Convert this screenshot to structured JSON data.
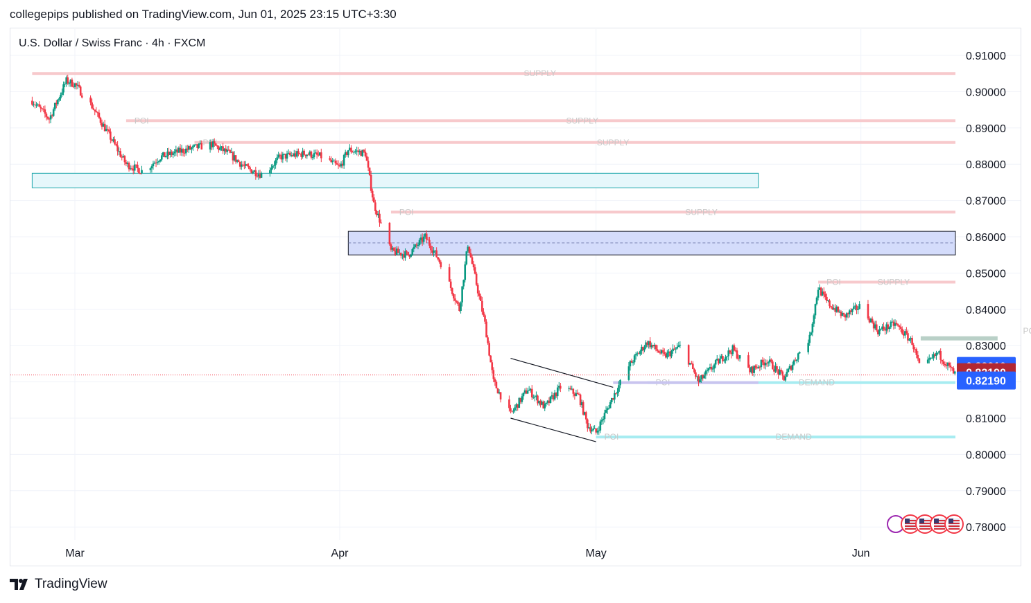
{
  "header": {
    "published": "collegepips published on TradingView.com, Jun 01, 2025 23:15 UTC+3:30",
    "symbol": "U.S. Dollar / Swiss Franc · 4h · FXCM"
  },
  "brand": {
    "name": "TradingView",
    "icon": "tradingview-logo-icon"
  },
  "chart_data": {
    "type": "candlestick",
    "y_axis": {
      "range": [
        0.775,
        0.915
      ],
      "ticks": [
        "0.91000",
        "0.90000",
        "0.89000",
        "0.88000",
        "0.87000",
        "0.86000",
        "0.85000",
        "0.84000",
        "0.83000",
        "0.82000",
        "0.81000",
        "0.80000",
        "0.79000",
        "0.78000"
      ]
    },
    "x_axis": {
      "ticks": [
        {
          "label": "Mar",
          "date": "2025-03-01"
        },
        {
          "label": "Apr",
          "date": "2025-04-01"
        },
        {
          "label": "May",
          "date": "2025-05-01"
        },
        {
          "label": "Jun",
          "date": "2025-06-01"
        }
      ]
    },
    "grid": true,
    "price_labels": [
      {
        "value": "0.82210",
        "color": "#2962ff"
      },
      {
        "value": "0.82190",
        "color": "#b22833"
      },
      {
        "value": "0.82190",
        "color": "#2962ff"
      }
    ],
    "last_price": 0.8219,
    "colors": {
      "up": "#089981",
      "down": "#f23645",
      "supply": "#f7c9cc",
      "demand": "#a7ecf1",
      "current_line": "#f23645"
    },
    "price_path": [
      [
        "2025-02-24",
        0.8975
      ],
      [
        "2025-02-26",
        0.8925
      ],
      [
        "2025-02-28",
        0.903
      ],
      [
        "2025-03-01",
        0.902
      ],
      [
        "2025-03-03",
        0.896
      ],
      [
        "2025-03-05",
        0.888
      ],
      [
        "2025-03-07",
        0.88
      ],
      [
        "2025-03-09",
        0.878
      ],
      [
        "2025-03-11",
        0.882
      ],
      [
        "2025-03-14",
        0.884
      ],
      [
        "2025-03-17",
        0.8855
      ],
      [
        "2025-03-19",
        0.883
      ],
      [
        "2025-03-21",
        0.879
      ],
      [
        "2025-03-23",
        0.877
      ],
      [
        "2025-03-25",
        0.882
      ],
      [
        "2025-03-28",
        0.883
      ],
      [
        "2025-03-30",
        0.882
      ],
      [
        "2025-04-01",
        0.879
      ],
      [
        "2025-04-02",
        0.884
      ],
      [
        "2025-04-04",
        0.883
      ],
      [
        "2025-04-05",
        0.869
      ],
      [
        "2025-04-07",
        0.856
      ],
      [
        "2025-04-09",
        0.855
      ],
      [
        "2025-04-11",
        0.86
      ],
      [
        "2025-04-13",
        0.852
      ],
      [
        "2025-04-15",
        0.84
      ],
      [
        "2025-04-16",
        0.858
      ],
      [
        "2025-04-18",
        0.836
      ],
      [
        "2025-04-19",
        0.82
      ],
      [
        "2025-04-21",
        0.811
      ],
      [
        "2025-04-23",
        0.818
      ],
      [
        "2025-04-25",
        0.813
      ],
      [
        "2025-04-27",
        0.819
      ],
      [
        "2025-04-29",
        0.816
      ],
      [
        "2025-04-30",
        0.808
      ],
      [
        "2025-05-01",
        0.806
      ],
      [
        "2025-05-03",
        0.816
      ],
      [
        "2025-05-05",
        0.825
      ],
      [
        "2025-05-07",
        0.831
      ],
      [
        "2025-05-09",
        0.827
      ],
      [
        "2025-05-11",
        0.83
      ],
      [
        "2025-05-13",
        0.82
      ],
      [
        "2025-05-15",
        0.825
      ],
      [
        "2025-05-17",
        0.829
      ],
      [
        "2025-05-19",
        0.823
      ],
      [
        "2025-05-21",
        0.826
      ],
      [
        "2025-05-23",
        0.821
      ],
      [
        "2025-05-25",
        0.829
      ],
      [
        "2025-05-26",
        0.832
      ],
      [
        "2025-05-27",
        0.846
      ],
      [
        "2025-05-28",
        0.842
      ],
      [
        "2025-05-30",
        0.838
      ],
      [
        "2025-06-01",
        0.841
      ],
      [
        "2025-06-03",
        0.834
      ],
      [
        "2025-06-05",
        0.836
      ],
      [
        "2025-06-07",
        0.831
      ],
      [
        "2025-06-08",
        0.823
      ],
      [
        "2025-06-10",
        0.828
      ],
      [
        "2025-06-12",
        0.822
      ],
      [
        "2025-06-14",
        0.82
      ],
      [
        "2025-06-16",
        0.826
      ],
      [
        "2025-06-18",
        0.825
      ],
      [
        "2025-06-19",
        0.834
      ],
      [
        "2025-06-20",
        0.824
      ],
      [
        "2025-06-22",
        0.822
      ],
      [
        "2025-06-23",
        0.8219
      ]
    ],
    "zones": [
      {
        "kind": "supply",
        "label": "SUPPLY",
        "y": 0.905,
        "from": "2025-02-24",
        "to": "2025-07-01"
      },
      {
        "kind": "supply",
        "label": "POI",
        "y": 0.892,
        "from": "2025-03-07",
        "to": "2025-07-01"
      },
      {
        "kind": "supply",
        "label": "SUPPLY",
        "y": 0.892,
        "from": "2025-03-07",
        "to": "2025-07-01"
      },
      {
        "kind": "supply",
        "label": "POI",
        "y": 0.886,
        "from": "2025-03-15",
        "to": "2025-07-01"
      },
      {
        "kind": "supply",
        "label": "SUPPLY",
        "y": 0.886,
        "from": "2025-03-15",
        "to": "2025-07-01"
      },
      {
        "kind": "supply",
        "label": "POI",
        "y": 0.8668,
        "from": "2025-04-07",
        "to": "2025-07-01"
      },
      {
        "kind": "supply",
        "label": "SUPPLY",
        "y": 0.8668,
        "from": "2025-04-07",
        "to": "2025-07-01"
      },
      {
        "kind": "supply",
        "label": "POI",
        "y": 0.8475,
        "from": "2025-05-27",
        "to": "2025-07-01"
      },
      {
        "kind": "supply",
        "label": "SUPPLY",
        "y": 0.8475,
        "from": "2025-05-27",
        "to": "2025-07-01"
      },
      {
        "kind": "supply",
        "label": "POI",
        "y": 0.834,
        "from": "2025-06-19",
        "to": "2025-07-01"
      },
      {
        "kind": "demand",
        "label": "POI",
        "y": 0.8198,
        "from": "2025-05-07",
        "to": "2025-07-01"
      },
      {
        "kind": "demand",
        "label": "DEMAND",
        "y": 0.8198,
        "from": "2025-05-07",
        "to": "2025-07-01"
      },
      {
        "kind": "demand",
        "label": "POI",
        "y": 0.8048,
        "from": "2025-05-01",
        "to": "2025-07-01"
      },
      {
        "kind": "demand",
        "label": "DEMAND",
        "y": 0.8048,
        "from": "2025-05-01",
        "to": "2025-07-01"
      }
    ],
    "boxes": [
      {
        "kind": "cyan-zone",
        "y_top": 0.8775,
        "y_bottom": 0.8735,
        "from": "2025-02-24",
        "to": "2025-05-20"
      },
      {
        "kind": "blue-zone",
        "y_top": 0.8615,
        "y_bottom": 0.855,
        "from": "2025-04-02",
        "to": "2025-07-01",
        "midline": 0.8583
      }
    ],
    "channel": {
      "upper": [
        [
          "2025-04-21",
          0.8265
        ],
        [
          "2025-05-03",
          0.8185
        ]
      ],
      "lower": [
        [
          "2025-04-21",
          0.81
        ],
        [
          "2025-05-01",
          0.8035
        ]
      ]
    },
    "event_icons": [
      "clock-event-icon",
      "us-flag-icon",
      "us-flag-icon",
      "us-flag-icon",
      "us-flag-icon"
    ]
  }
}
